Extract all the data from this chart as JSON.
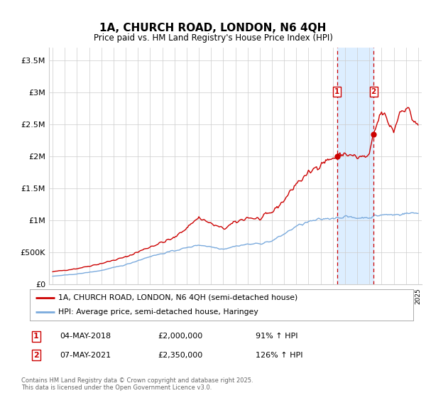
{
  "title": "1A, CHURCH ROAD, LONDON, N6 4QH",
  "subtitle": "Price paid vs. HM Land Registry's House Price Index (HPI)",
  "ylim": [
    0,
    3700000
  ],
  "yticks": [
    0,
    500000,
    1000000,
    1500000,
    2000000,
    2500000,
    3000000,
    3500000
  ],
  "ytick_labels": [
    "£0",
    "£500K",
    "£1M",
    "£1.5M",
    "£2M",
    "£2.5M",
    "£3M",
    "£3.5M"
  ],
  "x_start_year": 1995,
  "x_end_year": 2025,
  "background_color": "#ffffff",
  "grid_color": "#cccccc",
  "red_line_color": "#cc0000",
  "blue_line_color": "#7aaadd",
  "highlight_fill": "#ddeeff",
  "dashed_line_color": "#cc0000",
  "marker1_year": 2018.35,
  "marker2_year": 2021.35,
  "marker1_value": 2000000,
  "marker2_value": 2350000,
  "annotation1": {
    "label": "1",
    "date": "04-MAY-2018",
    "price": "£2,000,000",
    "hpi": "91% ↑ HPI"
  },
  "annotation2": {
    "label": "2",
    "date": "07-MAY-2021",
    "price": "£2,350,000",
    "hpi": "126% ↑ HPI"
  },
  "legend_red": "1A, CHURCH ROAD, LONDON, N6 4QH (semi-detached house)",
  "legend_blue": "HPI: Average price, semi-detached house, Haringey",
  "footer": "Contains HM Land Registry data © Crown copyright and database right 2025.\nThis data is licensed under the Open Government Licence v3.0."
}
